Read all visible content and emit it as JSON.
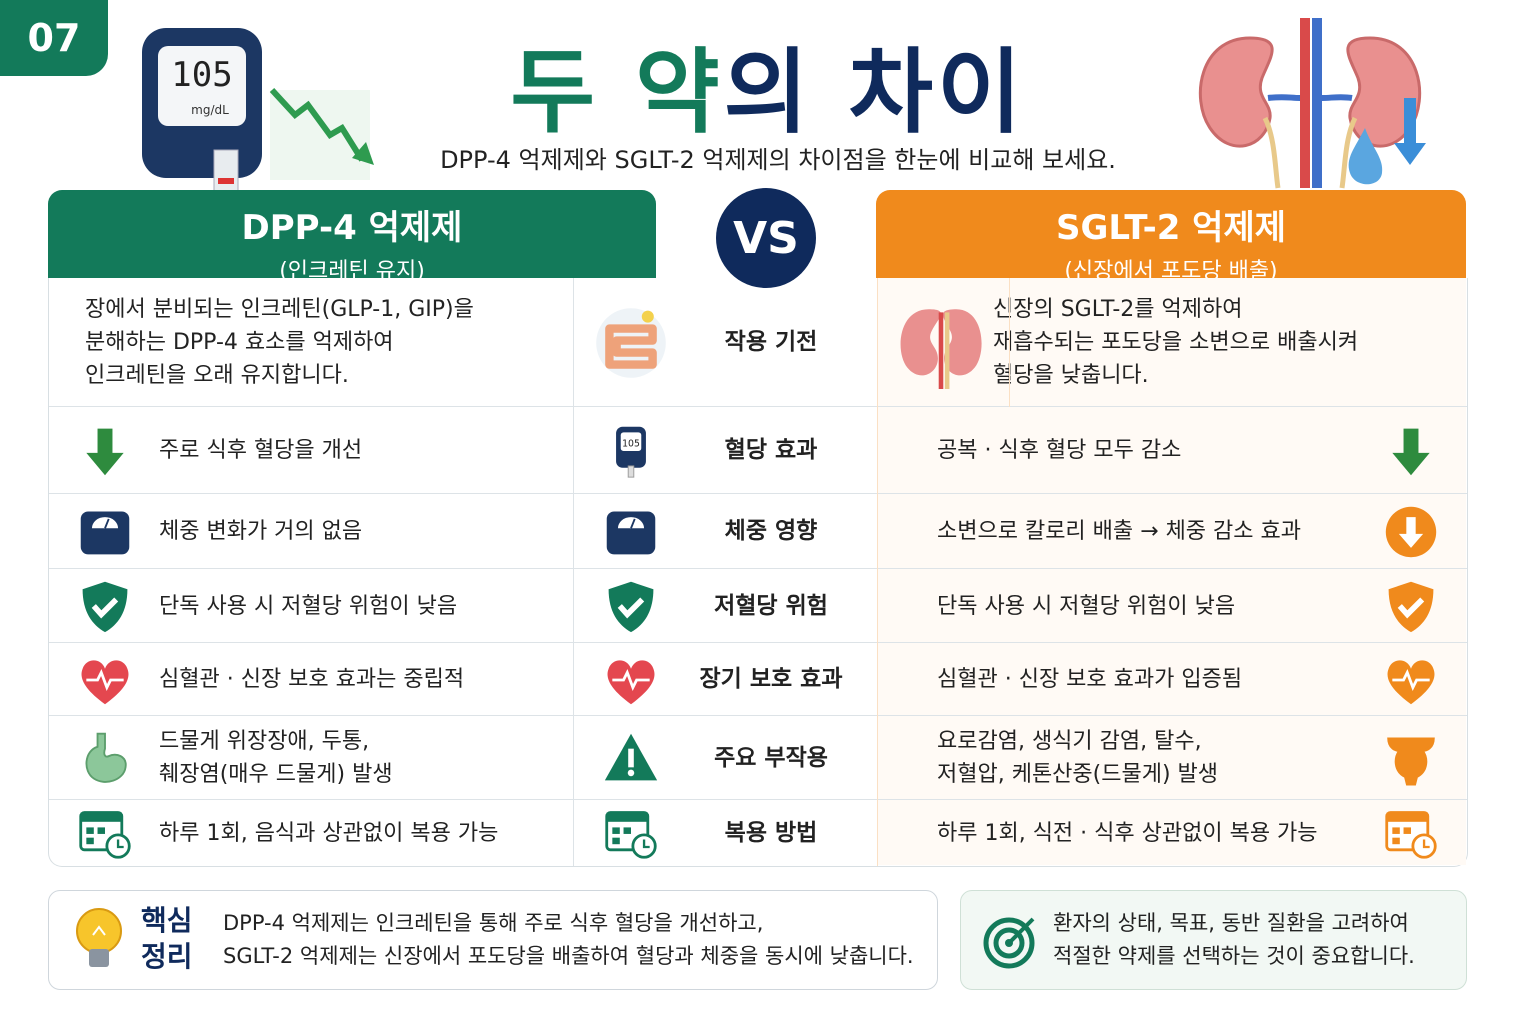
{
  "badge": "07",
  "header": {
    "title": [
      "두 약",
      "의 차이"
    ],
    "subtitle": "DPP-4 억제제와 SGLT-2 억제제의 차이점을 한눈에 비교해 보세요.",
    "meter": {
      "value": "105",
      "unit": "mg/dL"
    }
  },
  "left_drug": {
    "name": "DPP-4 억제제",
    "note": "(인크레틴 유지)"
  },
  "vs": "VS",
  "right_drug": {
    "name": "SGLT-2 억제제",
    "note": "(신장에서 포도당 배출)"
  },
  "rows": [
    {
      "left": [
        "장에서 분비되는 인크레틴(GLP-1, GIP)을",
        "분해하는 DPP-4 효소를 억제하여",
        "인크레틴을 오래 유지합니다."
      ],
      "label": "작용 기전",
      "right": [
        "신장의 SGLT-2를 억제하여",
        "재흡수되는 포도당을 소변으로 배출시켜",
        "혈당을 낮춥니다."
      ]
    },
    {
      "left": [
        "주로 식후 혈당을 개선"
      ],
      "label": "혈당 효과",
      "right": [
        "공복 · 식후 혈당 모두 감소"
      ]
    },
    {
      "left": [
        "체중 변화가 거의 없음"
      ],
      "label": "체중 영향",
      "right": [
        "소변으로 칼로리 배출 → 체중 감소 효과"
      ]
    },
    {
      "left": [
        "단독 사용 시 저혈당 위험이 낮음"
      ],
      "label": "저혈당 위험",
      "right": [
        "단독 사용 시 저혈당 위험이 낮음"
      ]
    },
    {
      "left": [
        "심혈관 · 신장 보호 효과는 중립적"
      ],
      "label": "장기 보호 효과",
      "right": [
        "심혈관 · 신장 보호 효과가 입증됨"
      ]
    },
    {
      "left": [
        "드물게 위장장애, 두통,",
        "췌장염(매우 드물게) 발생"
      ],
      "label": "주요 부작용",
      "right": [
        "요로감염, 생식기 감염, 탈수,",
        "저혈압, 케톤산중(드물게) 발생"
      ]
    },
    {
      "left": [
        "하루 1회, 음식과 상관없이 복용 가능"
      ],
      "label": "복용 방법",
      "right": [
        "하루 1회, 식전 · 식후 상관없이 복용 가능"
      ]
    }
  ],
  "summary": {
    "heading": [
      "핵심",
      "정리"
    ],
    "lines": [
      "DPP-4 억제제는 인크레틴을 통해 주로 식후 혈당을 개선하고,",
      "SGLT-2 억제제는 신장에서 포도당을 배출하여 혈당과 체중을 동시에 낮춥니다."
    ]
  },
  "note": {
    "lines": [
      "환자의 상태, 목표, 동반 질환을 고려하여",
      "적절한 약제를 선택하는 것이 중요합니다."
    ]
  }
}
